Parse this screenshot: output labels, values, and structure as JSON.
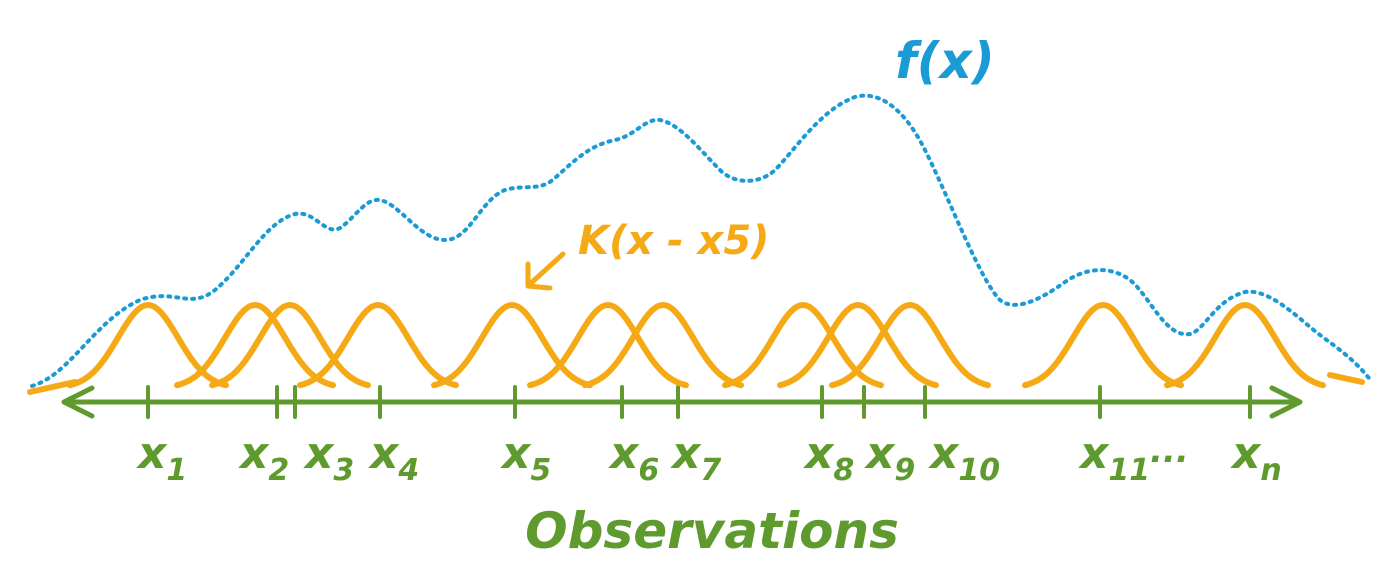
{
  "colors": {
    "axis": "#5e9a2e",
    "kernel": "#f5a915",
    "density": "#1b9bd6",
    "background": "#ffffff"
  },
  "density_label": "f(x)",
  "kernel_label": "K(x - x5)",
  "axis_label": "Observations",
  "ellipsis": "...",
  "observations": [
    {
      "base": "x",
      "sub": "1"
    },
    {
      "base": "x",
      "sub": "2"
    },
    {
      "base": "x",
      "sub": "3"
    },
    {
      "base": "x",
      "sub": "4"
    },
    {
      "base": "x",
      "sub": "5"
    },
    {
      "base": "x",
      "sub": "6"
    },
    {
      "base": "x",
      "sub": "7"
    },
    {
      "base": "x",
      "sub": "8"
    },
    {
      "base": "x",
      "sub": "9"
    },
    {
      "base": "x",
      "sub": "10"
    },
    {
      "base": "x",
      "sub": "11"
    },
    {
      "base": "x",
      "sub": "n"
    }
  ]
}
